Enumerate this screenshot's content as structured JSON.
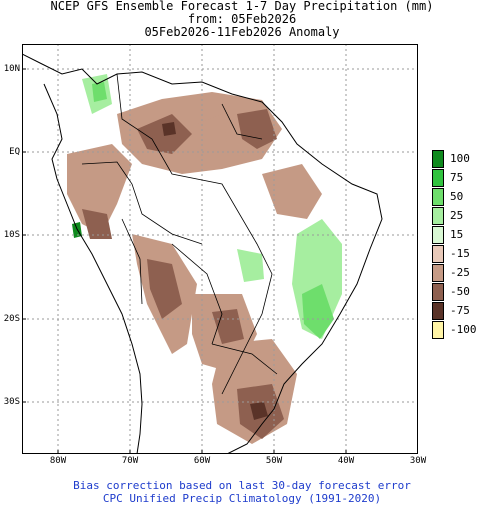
{
  "titles": [
    "NCEP GFS Ensemble Forecast 1-7 Day Precipitation (mm)",
    "from: 05Feb2026",
    "05Feb2026-11Feb2026 Anomaly"
  ],
  "footer": [
    "Bias correction based on last 30-day forecast error",
    "CPC Unified Precip Climatology (1991-2020)"
  ],
  "lat_labels": [
    "10N",
    "EQ",
    "10S",
    "20S",
    "30S"
  ],
  "lon_labels": [
    "80W",
    "70W",
    "60W",
    "50W",
    "40W",
    "30W"
  ],
  "legend": [
    {
      "label": "100",
      "color": "#0f8a1e"
    },
    {
      "label": "75",
      "color": "#31c33f"
    },
    {
      "label": "50",
      "color": "#6ede6c"
    },
    {
      "label": "25",
      "color": "#a6eea0"
    },
    {
      "label": "15",
      "color": "#d9f8d4"
    },
    {
      "label": "-15",
      "color": "#e8c9b9"
    },
    {
      "label": "-25",
      "color": "#c59a85"
    },
    {
      "label": "-50",
      "color": "#8e6050"
    },
    {
      "label": "-75",
      "color": "#5a3328"
    },
    {
      "label": "-100",
      "color": "#fff4a6"
    }
  ]
}
